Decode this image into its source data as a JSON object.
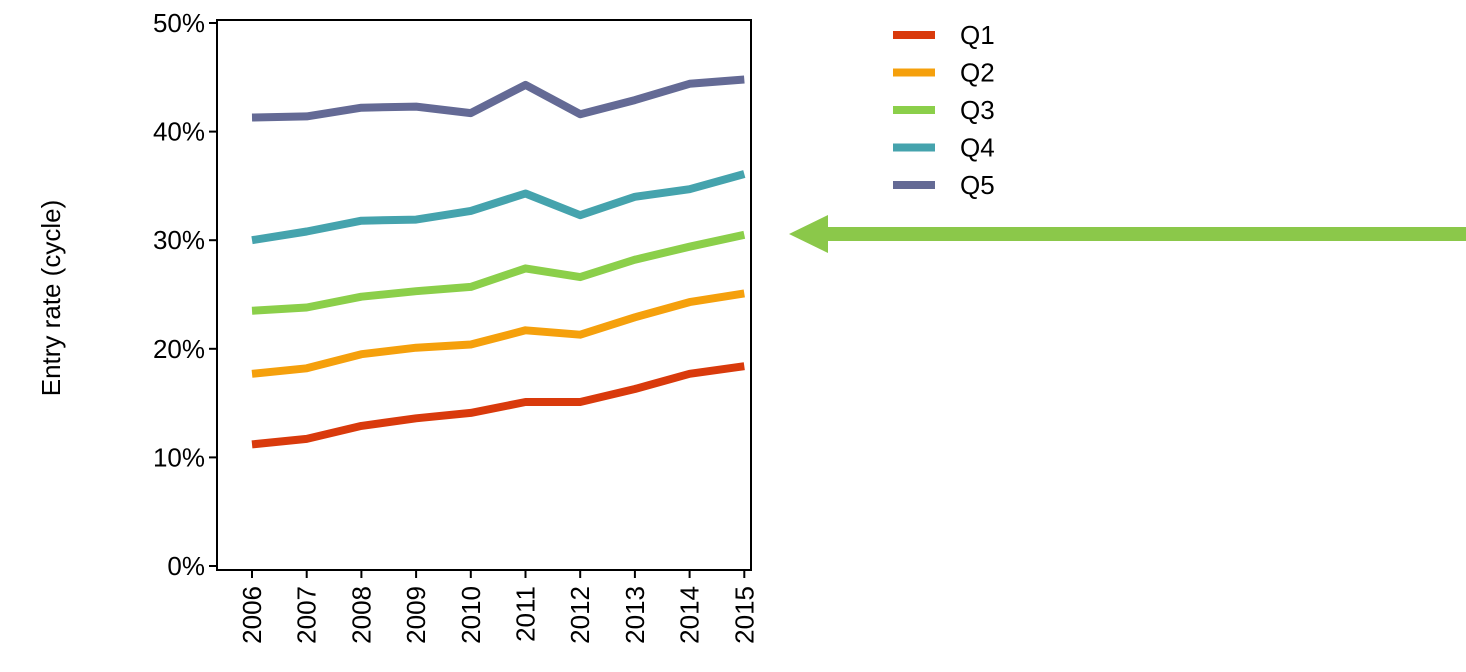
{
  "chart_data": {
    "type": "line",
    "title": "",
    "xlabel": "",
    "ylabel": "Entry rate (cycle)",
    "categories": [
      "2006",
      "2007",
      "2008",
      "2009",
      "2010",
      "2011",
      "2012",
      "2013",
      "2014",
      "2015"
    ],
    "y_ticks": [
      "0%",
      "10%",
      "20%",
      "30%",
      "40%",
      "50%"
    ],
    "ylim": [
      0,
      50
    ],
    "grid": false,
    "legend_position": "top-right",
    "series": [
      {
        "name": "Q1",
        "color": "#d93a0c",
        "values": [
          11.2,
          11.7,
          12.9,
          13.6,
          14.1,
          15.1,
          15.1,
          16.3,
          17.7,
          18.4
        ]
      },
      {
        "name": "Q2",
        "color": "#f5a00c",
        "values": [
          17.7,
          18.2,
          19.5,
          20.1,
          20.4,
          21.7,
          21.3,
          22.9,
          24.3,
          25.1
        ]
      },
      {
        "name": "Q3",
        "color": "#8bcf4a",
        "values": [
          23.5,
          23.8,
          24.8,
          25.3,
          25.7,
          27.4,
          26.6,
          28.2,
          29.4,
          30.5
        ]
      },
      {
        "name": "Q4",
        "color": "#45a3ad",
        "values": [
          30.0,
          30.8,
          31.8,
          31.9,
          32.7,
          34.3,
          32.3,
          34.0,
          34.7,
          36.1
        ]
      },
      {
        "name": "Q5",
        "color": "#646a95",
        "values": [
          41.3,
          41.4,
          42.2,
          42.3,
          41.7,
          44.3,
          41.6,
          42.9,
          44.4,
          44.8
        ]
      }
    ],
    "annotation": {
      "type": "arrow",
      "color": "#8bc84a",
      "points_to": "Q3 series level"
    }
  }
}
